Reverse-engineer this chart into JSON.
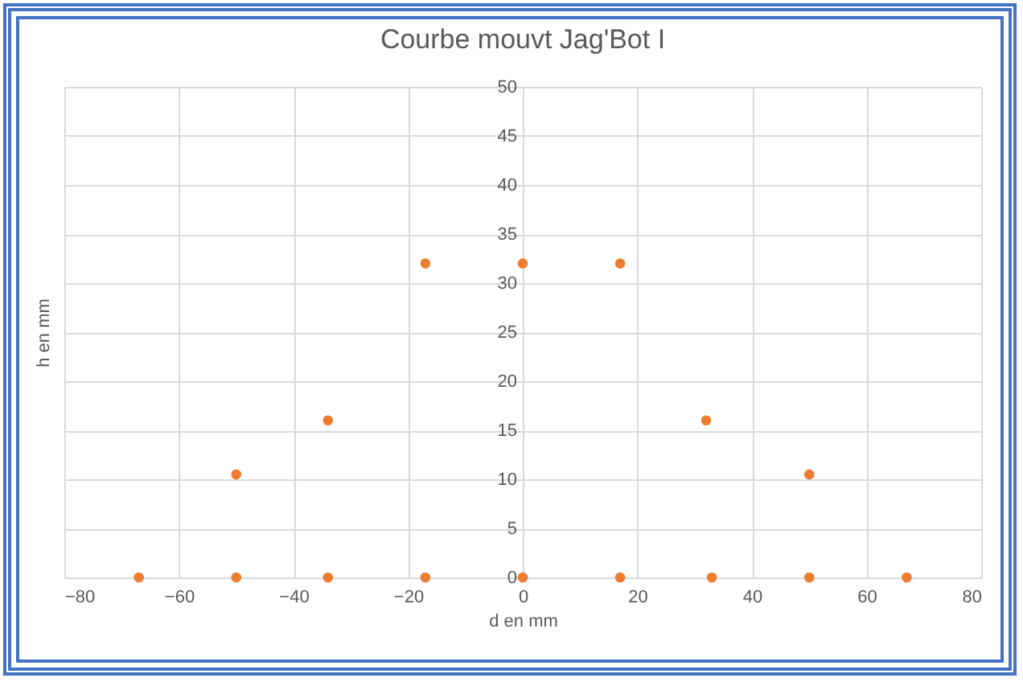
{
  "chart_data": {
    "type": "scatter",
    "title": "Courbe mouvt Jag'Bot I",
    "xlabel": "d en mm",
    "ylabel": "h en mm",
    "x": [
      -67,
      -50,
      -50,
      -34,
      -34,
      -17,
      -17,
      0,
      0,
      17,
      17,
      32,
      33,
      50,
      50,
      67
    ],
    "series": [
      {
        "color": "#ed7d31",
        "values": [
          0,
          0,
          10.5,
          0,
          16,
          0,
          32,
          32,
          0,
          32,
          0,
          16,
          0,
          10.5,
          0,
          0
        ]
      }
    ],
    "xlim": [
      -80,
      80
    ],
    "xticks": [
      -80,
      -60,
      -40,
      -20,
      0,
      20,
      40,
      60,
      80
    ],
    "ylim": [
      0,
      50
    ],
    "yticks": [
      0,
      5,
      10,
      15,
      20,
      25,
      30,
      35,
      40,
      45,
      50
    ],
    "grid": true,
    "marker": "circle"
  }
}
